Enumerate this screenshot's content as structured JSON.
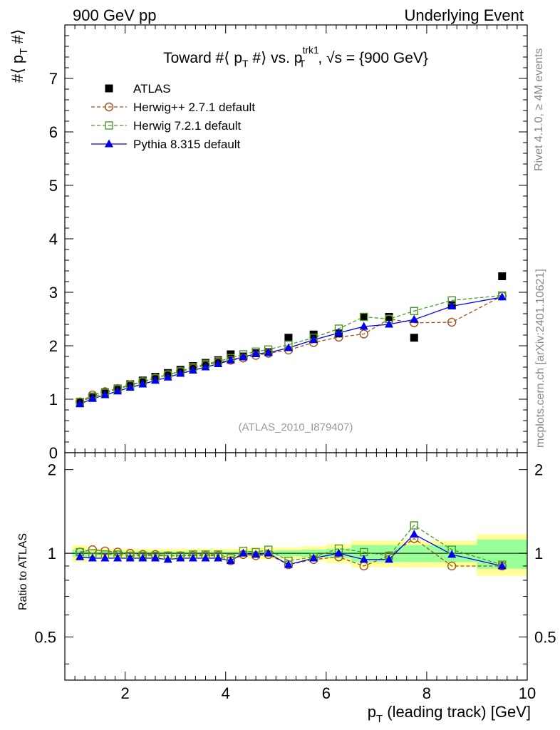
{
  "header": {
    "left": "900 GeV pp",
    "right": "Underlying Event"
  },
  "side_labels": {
    "rivet": "Rivet 4.1.0, ≥ 4M events",
    "mcplots": "mcplots.cern.ch [arXiv:2401.10621]"
  },
  "analysis_id": "(ATLAS_2010_I879407)",
  "chart_data": [
    {
      "type": "scatter",
      "title": "Toward #⟨ p_T #⟩ vs. p_T^trk1, √s = {900 GeV}",
      "title_parts": {
        "a": "Toward #⟨ p",
        "a_sub": "T",
        "b": " #⟩ vs. p",
        "b_sup": "trk1",
        "b_sub": "T",
        "c": ", √s = {900 GeV}"
      },
      "ylabel_parts": {
        "a": "#⟨ p",
        "sub": "T",
        "b": " #⟩"
      },
      "xlim": [
        0.8,
        10.0
      ],
      "ylim": [
        0,
        8
      ],
      "yticks": [
        0,
        1,
        2,
        3,
        4,
        5,
        6,
        7
      ],
      "yticks_labels": [
        "0",
        "1",
        "2",
        "3",
        "4",
        "5",
        "6",
        "7"
      ],
      "legend": [
        {
          "name": "ATLAS",
          "marker": "filled-square",
          "color": "#000000"
        },
        {
          "name": "Herwig++ 2.7.1 default",
          "marker": "open-circle",
          "color": "#a0521e",
          "dash": true
        },
        {
          "name": "Herwig 7.2.1 default",
          "marker": "open-square",
          "color": "#4a9b27",
          "dash": true
        },
        {
          "name": "Pythia 8.315 default",
          "marker": "filled-triangle",
          "color": "#0000ee",
          "dash": false
        }
      ],
      "x": [
        1.1,
        1.35,
        1.6,
        1.85,
        2.1,
        2.35,
        2.6,
        2.85,
        3.1,
        3.35,
        3.6,
        3.85,
        4.1,
        4.35,
        4.6,
        4.85,
        5.25,
        5.75,
        6.25,
        6.75,
        7.25,
        7.75,
        8.5,
        9.5
      ],
      "series": [
        {
          "name": "ATLAS",
          "values": [
            0.94,
            1.05,
            1.13,
            1.2,
            1.28,
            1.35,
            1.42,
            1.49,
            1.55,
            1.62,
            1.68,
            1.73,
            1.84,
            1.8,
            1.86,
            1.88,
            2.15,
            2.21,
            2.23,
            2.54,
            2.54,
            2.15,
            2.76,
            3.3
          ]
        },
        {
          "name": "Herwig++ 2.7.1 default",
          "values": [
            0.95,
            1.08,
            1.14,
            1.2,
            1.27,
            1.33,
            1.4,
            1.46,
            1.52,
            1.58,
            1.64,
            1.69,
            1.73,
            1.77,
            1.82,
            1.86,
            1.92,
            2.06,
            2.16,
            2.22,
            2.5,
            2.43,
            2.44,
            2.93
          ]
        },
        {
          "name": "Herwig 7.2.1 default",
          "values": [
            0.95,
            1.04,
            1.12,
            1.19,
            1.26,
            1.33,
            1.39,
            1.46,
            1.52,
            1.6,
            1.66,
            1.71,
            1.77,
            1.84,
            1.89,
            1.93,
            2.02,
            2.15,
            2.32,
            2.54,
            2.5,
            2.65,
            2.85,
            2.94
          ]
        },
        {
          "name": "Pythia 8.315 default",
          "values": [
            0.91,
            1.01,
            1.08,
            1.15,
            1.22,
            1.28,
            1.35,
            1.41,
            1.48,
            1.54,
            1.6,
            1.66,
            1.73,
            1.79,
            1.85,
            1.87,
            1.96,
            2.11,
            2.24,
            2.36,
            2.4,
            2.49,
            2.74,
            2.91
          ]
        }
      ]
    },
    {
      "type": "scatter",
      "ylabel": "Ratio to ATLAS",
      "xlabel_parts": {
        "a": "p",
        "sub": "T",
        "b": " (leading track) [GeV]"
      },
      "xlim": [
        0.8,
        10.0
      ],
      "ylim": [
        0.35,
        2.3
      ],
      "xticks": [
        2,
        4,
        6,
        8,
        10
      ],
      "xticks_labels": [
        "2",
        "4",
        "6",
        "8",
        "10"
      ],
      "yticks": [
        0.5,
        1,
        2
      ],
      "yticks_labels": [
        "0.5",
        "1",
        "2"
      ],
      "bands": {
        "bins": [
          [
            0.95,
            1.25
          ],
          [
            1.25,
            1.5
          ],
          [
            1.5,
            1.75
          ],
          [
            1.75,
            2.0
          ],
          [
            2.0,
            2.25
          ],
          [
            2.25,
            2.5
          ],
          [
            2.5,
            2.75
          ],
          [
            2.75,
            3.0
          ],
          [
            3.0,
            3.25
          ],
          [
            3.25,
            3.5
          ],
          [
            3.5,
            3.75
          ],
          [
            3.75,
            4.0
          ],
          [
            4.0,
            4.25
          ],
          [
            4.25,
            4.5
          ],
          [
            4.5,
            4.75
          ],
          [
            4.75,
            5.0
          ],
          [
            5.0,
            5.5
          ],
          [
            5.5,
            6.0
          ],
          [
            6.0,
            6.5
          ],
          [
            6.5,
            7.0
          ],
          [
            7.0,
            7.5
          ],
          [
            7.5,
            8.0
          ],
          [
            8.0,
            9.0
          ],
          [
            9.0,
            10.0
          ]
        ],
        "stat_half": [
          0.03,
          0.015,
          0.015,
          0.015,
          0.015,
          0.015,
          0.015,
          0.015,
          0.015,
          0.015,
          0.015,
          0.015,
          0.015,
          0.015,
          0.02,
          0.02,
          0.025,
          0.03,
          0.04,
          0.07,
          0.07,
          0.07,
          0.07,
          0.12
        ],
        "total_half": [
          0.07,
          0.04,
          0.04,
          0.04,
          0.04,
          0.04,
          0.04,
          0.04,
          0.04,
          0.04,
          0.04,
          0.04,
          0.04,
          0.04,
          0.05,
          0.05,
          0.05,
          0.06,
          0.08,
          0.11,
          0.11,
          0.11,
          0.11,
          0.17
        ],
        "stat_color": "#99ff99",
        "total_color": "#ffff99"
      },
      "series": [
        {
          "name": "Herwig++ 2.7.1 default",
          "values": [
            1.01,
            1.03,
            1.02,
            1.01,
            1.0,
            0.99,
            0.99,
            0.98,
            0.98,
            0.98,
            0.98,
            0.98,
            0.94,
            0.99,
            0.98,
            0.99,
            0.91,
            0.95,
            0.97,
            0.9,
            0.98,
            1.13,
            0.9,
            0.9
          ]
        },
        {
          "name": "Herwig 7.2.1 default",
          "values": [
            1.01,
            1.0,
            0.99,
            0.99,
            0.98,
            0.98,
            0.98,
            0.98,
            0.98,
            0.99,
            0.99,
            0.99,
            0.96,
            1.02,
            1.01,
            1.03,
            0.94,
            0.97,
            1.04,
            1.01,
            0.98,
            1.26,
            1.03,
            0.91
          ]
        },
        {
          "name": "Pythia 8.315 default",
          "values": [
            0.97,
            0.96,
            0.96,
            0.96,
            0.96,
            0.96,
            0.96,
            0.95,
            0.96,
            0.96,
            0.96,
            0.96,
            0.94,
            1.0,
            0.99,
            1.0,
            0.91,
            0.96,
            1.0,
            0.95,
            0.95,
            1.17,
            0.99,
            0.9
          ]
        }
      ]
    }
  ]
}
